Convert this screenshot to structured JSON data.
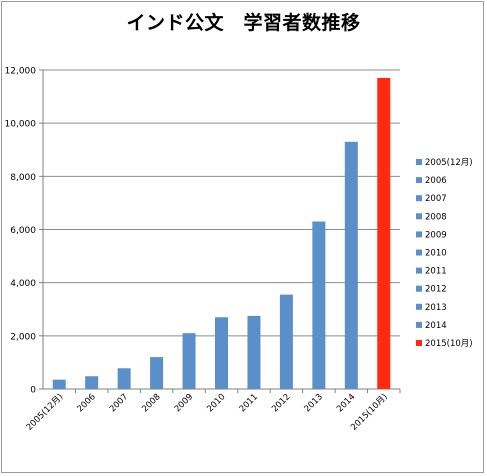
{
  "chart_data": {
    "type": "bar",
    "title": "インド公文　学習者数推移",
    "categories": [
      "2005(12月)",
      "2006",
      "2007",
      "2008",
      "2009",
      "2010",
      "2011",
      "2012",
      "2013",
      "2014",
      "2015(10月)"
    ],
    "values": [
      350,
      480,
      780,
      1200,
      2100,
      2700,
      2750,
      3550,
      6300,
      9300,
      11700
    ],
    "series_colors": [
      "#5b8fc9",
      "#5b8fc9",
      "#5b8fc9",
      "#5b8fc9",
      "#5b8fc9",
      "#5b8fc9",
      "#5b8fc9",
      "#5b8fc9",
      "#5b8fc9",
      "#5b8fc9",
      "#ff2a10"
    ],
    "ylim": [
      0,
      12000
    ],
    "y_ticks": [
      0,
      2000,
      4000,
      6000,
      8000,
      10000,
      12000
    ],
    "y_tick_labels": [
      "0",
      "2,000",
      "4,000",
      "6,000",
      "8,000",
      "10,000",
      "12,000"
    ],
    "grid": true,
    "legend": {
      "placement": "right",
      "entries": [
        "2005(12月)",
        "2006",
        "2007",
        "2008",
        "2009",
        "2010",
        "2011",
        "2012",
        "2013",
        "2014",
        "2015(10月)"
      ]
    },
    "xlabel": "",
    "ylabel": ""
  }
}
